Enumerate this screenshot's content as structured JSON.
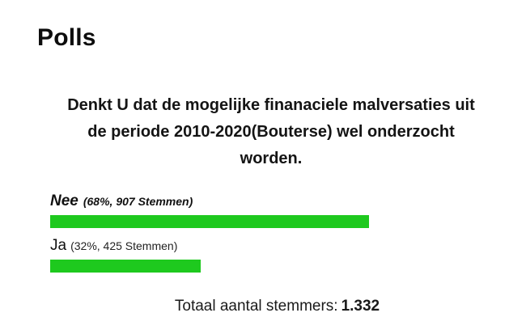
{
  "heading": "Polls",
  "question": "Denkt U dat de mogelijke finanaciele malversaties uit de periode 2010-2020(Bouterse) wel onderzocht worden.",
  "options": [
    {
      "name": "Nee",
      "meta": "(68%, 907 Stemmen)",
      "percent": 68,
      "votes": 907
    },
    {
      "name": "Ja",
      "meta": "(32%, 425 Stemmen)",
      "percent": 32,
      "votes": 425
    }
  ],
  "total": {
    "label": "Totaal aantal stemmers:",
    "count": "1.332"
  },
  "colors": {
    "bar": "#1ec91e",
    "text": "#111111"
  }
}
